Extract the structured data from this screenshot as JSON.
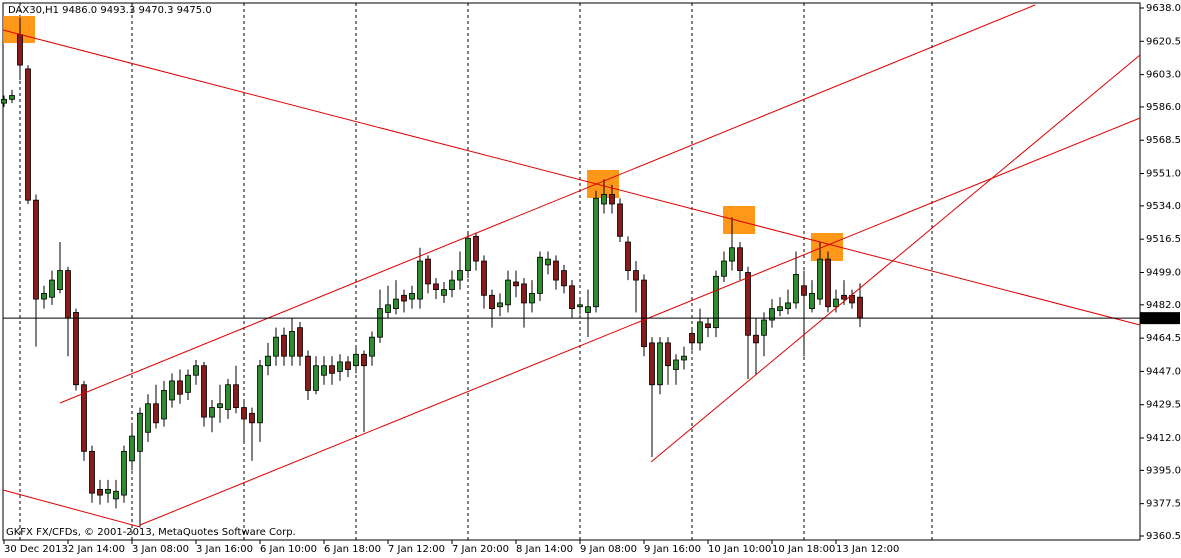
{
  "chart_data": {
    "type": "candlestick",
    "title": "DAX30,H1  9486.0 9493.3 9470.3 9475.0",
    "copyright": "GKFX FX/CFDs, © 2001-2013, MetaQuotes Software Corp.",
    "up_color": "#2e8b2e",
    "down_color": "#8b1a1a",
    "categories": [
      "30 Dec 2013",
      null,
      null,
      null,
      null,
      null,
      null,
      null,
      "2 Jan 14:00",
      null,
      null,
      null,
      null,
      null,
      null,
      null,
      "3 Jan 08:00",
      null,
      null,
      null,
      null,
      null,
      null,
      null,
      "3 Jan 16:00",
      null,
      null,
      null,
      null,
      null,
      null,
      null,
      "6 Jan 10:00",
      null,
      null,
      null,
      null,
      null,
      null,
      null,
      "6 Jan 18:00",
      null,
      null,
      null,
      null,
      null,
      null,
      null,
      "7 Jan 12:00",
      null,
      null,
      null,
      null,
      null,
      null,
      null,
      "7 Jan 20:00",
      null,
      null,
      null,
      null,
      null,
      null,
      null,
      "8 Jan 14:00",
      null,
      null,
      null,
      null,
      null,
      null,
      null,
      "9 Jan 08:00",
      null,
      null,
      null,
      null,
      null,
      null,
      null,
      "9 Jan 16:00",
      null,
      null,
      null,
      null,
      null,
      null,
      null,
      "10 Jan 10:00",
      null,
      null,
      null,
      null,
      null,
      null,
      null,
      "10 Jan 18:00",
      null,
      null,
      null,
      null,
      null,
      null,
      null,
      "13 Jan 12:00",
      null,
      null,
      null
    ],
    "open": [
      9588,
      9590,
      9624,
      9606,
      9537,
      9485,
      9486,
      9490,
      9500,
      9478,
      9440,
      9405,
      9385,
      9383,
      9380,
      9382,
      9400,
      9405,
      9415,
      9430,
      9422,
      9432,
      9442,
      9436,
      9445,
      9450,
      9423,
      9428,
      9427,
      9440,
      9428,
      9425,
      9420,
      9450,
      9455,
      9466,
      9455,
      9470,
      9455,
      9437,
      9445,
      9450,
      9447,
      9452,
      9450,
      9456,
      9455,
      9465,
      9478,
      9480,
      9487,
      9485,
      9485,
      9506,
      9493,
      9487,
      9490,
      9495,
      9500,
      9518,
      9505,
      9487,
      9481,
      9482,
      9494,
      9493,
      9483,
      9488,
      9503,
      9505,
      9500,
      9492,
      9481,
      9478,
      9481,
      9535,
      9540,
      9535,
      9515,
      9500,
      9495,
      9462,
      9440,
      9462,
      9448,
      9453,
      9467,
      9462,
      9472,
      9470,
      9497,
      9505,
      9512,
      9499,
      9466,
      9466,
      9474,
      9479,
      9480,
      9483,
      9492,
      9480,
      9485,
      9506,
      9481,
      9487,
      9487,
      9486
    ],
    "high": [
      9592,
      9595,
      9633,
      9608,
      9540,
      9492,
      9500,
      9515,
      9502,
      9480,
      9442,
      9408,
      9390,
      9390,
      9390,
      9408,
      9420,
      9428,
      9435,
      9440,
      9442,
      9446,
      9448,
      9448,
      9453,
      9452,
      9432,
      9440,
      9443,
      9450,
      9432,
      9428,
      9453,
      9462,
      9470,
      9470,
      9475,
      9473,
      9458,
      9455,
      9455,
      9455,
      9456,
      9455,
      9460,
      9458,
      9468,
      9490,
      9492,
      9495,
      9490,
      9492,
      9512,
      9508,
      9496,
      9494,
      9500,
      9510,
      9520,
      9520,
      9508,
      9490,
      9488,
      9500,
      9500,
      9496,
      9495,
      9510,
      9510,
      9508,
      9503,
      9495,
      9485,
      9490,
      9542,
      9548,
      9545,
      9538,
      9518,
      9505,
      9498,
      9465,
      9465,
      9465,
      9456,
      9460,
      9470,
      9480,
      9475,
      9500,
      9510,
      9528,
      9515,
      9502,
      9475,
      9478,
      9485,
      9486,
      9490,
      9510,
      9500,
      9495,
      9515,
      9510,
      9490,
      9495,
      9490,
      9493.3
    ],
    "low": [
      9586,
      9588,
      9600,
      9535,
      9460,
      9480,
      9482,
      9488,
      9455,
      9437,
      9400,
      9378,
      9377,
      9378,
      9375,
      9378,
      9395,
      9365,
      9410,
      9417,
      9418,
      9428,
      9430,
      9432,
      9440,
      9418,
      9415,
      9420,
      9422,
      9425,
      9410,
      9400,
      9410,
      9445,
      9450,
      9450,
      9450,
      9450,
      9432,
      9435,
      9440,
      9440,
      9442,
      9444,
      9446,
      9415,
      9450,
      9462,
      9475,
      9477,
      9478,
      9480,
      9480,
      9488,
      9485,
      9483,
      9486,
      9490,
      9496,
      9500,
      9480,
      9470,
      9476,
      9478,
      9486,
      9470,
      9478,
      9484,
      9498,
      9490,
      9488,
      9475,
      9477,
      9465,
      9478,
      9530,
      9530,
      9515,
      9495,
      9478,
      9455,
      9402,
      9435,
      9440,
      9440,
      9448,
      9458,
      9458,
      9465,
      9465,
      9494,
      9500,
      9495,
      9443,
      9445,
      9455,
      9470,
      9476,
      9477,
      9480,
      9455,
      9478,
      9482,
      9478,
      9478,
      9482,
      9480,
      9470.3
    ],
    "close": [
      9590,
      9592,
      9608,
      9537,
      9485,
      9488,
      9495,
      9500,
      9475,
      9440,
      9405,
      9383,
      9382,
      9385,
      9384,
      9405,
      9413,
      9425,
      9430,
      9420,
      9437,
      9442,
      9435,
      9445,
      9450,
      9423,
      9428,
      9430,
      9440,
      9428,
      9422,
      9420,
      9450,
      9455,
      9465,
      9455,
      9468,
      9455,
      9437,
      9450,
      9450,
      9446,
      9452,
      9448,
      9456,
      9450,
      9465,
      9480,
      9482,
      9485,
      9484,
      9488,
      9505,
      9493,
      9490,
      9490,
      9495,
      9500,
      9517,
      9505,
      9487,
      9480,
      9483,
      9495,
      9492,
      9483,
      9488,
      9507,
      9506,
      9495,
      9492,
      9480,
      9482,
      9481,
      9538,
      9540,
      9535,
      9518,
      9500,
      9495,
      9460,
      9440,
      9462,
      9450,
      9453,
      9455,
      9462,
      9473,
      9470,
      9497,
      9505,
      9512,
      9500,
      9466,
      9462,
      9474,
      9480,
      9481,
      9483,
      9498,
      9487,
      9488,
      9506,
      9481,
      9485,
      9485,
      9483,
      9475
    ],
    "ylim": [
      9360.5,
      9638
    ],
    "yticks": [
      {
        "value": 9638,
        "label": "9638.0"
      },
      {
        "value": 9620.5,
        "label": "9620.5"
      },
      {
        "value": 9603,
        "label": "9603.0"
      },
      {
        "value": 9586,
        "label": "9586.0"
      },
      {
        "value": 9568.5,
        "label": "9568.5"
      },
      {
        "value": 9551,
        "label": "9551.0"
      },
      {
        "value": 9534,
        "label": "9534.0"
      },
      {
        "value": 9516.5,
        "label": "9516.5"
      },
      {
        "value": 9499,
        "label": "9499.0"
      },
      {
        "value": 9482,
        "label": "9482.0"
      },
      {
        "value": 9464.5,
        "label": "9464.5"
      },
      {
        "value": 9447,
        "label": "9447.0"
      },
      {
        "value": 9429.5,
        "label": "9429.5"
      },
      {
        "value": 9412,
        "label": "9412.0"
      },
      {
        "value": 9395,
        "label": "9395.0"
      },
      {
        "value": 9377.5,
        "label": "9377.5"
      },
      {
        "value": 9360.5,
        "label": "9360.5"
      }
    ],
    "last_price": {
      "value": 9475,
      "label": "9475.0"
    }
  }
}
